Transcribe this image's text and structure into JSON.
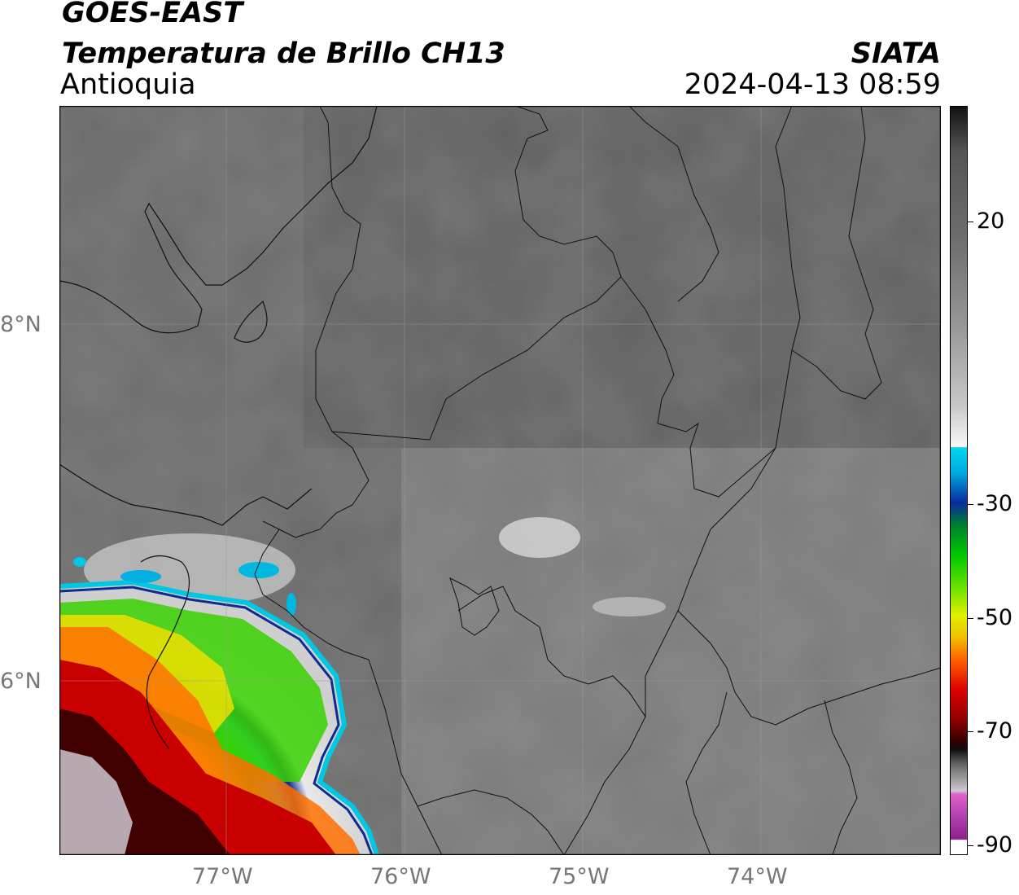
{
  "title": {
    "line1": "GOES-EAST",
    "line2": "Temperatura de Brillo CH13",
    "line3": "Antioquia",
    "brand": "SIATA",
    "datetime": "2024-04-13 08:59"
  },
  "map": {
    "lat_labels": [
      "8°N",
      "6°N"
    ],
    "lon_labels": [
      "77°W",
      "76°W",
      "75°W",
      "74°W"
    ]
  },
  "colorbar": {
    "ticks": [
      "20",
      "-30",
      "-50",
      "-70",
      "-90"
    ],
    "colors": {
      "black": "#111111",
      "gray": "#888888",
      "white": "#ffffff",
      "cyan": "#00d8f0",
      "blue": "#0a2a9c",
      "green": "#00c800",
      "yellow": "#f0f000",
      "orange": "#ff9000",
      "red": "#e00000",
      "darkred": "#600000",
      "magenta": "#d030c0",
      "purple": "#90208c"
    }
  }
}
